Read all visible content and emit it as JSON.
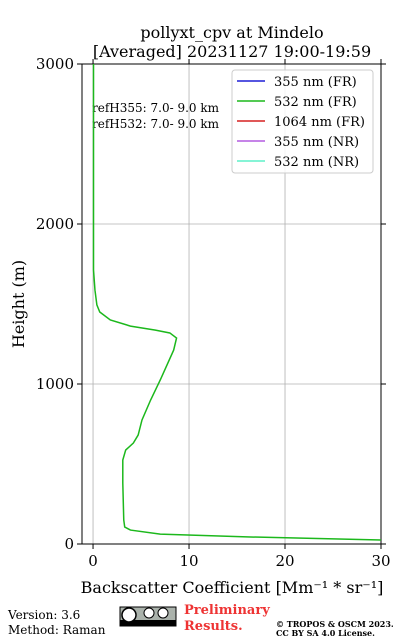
{
  "chart_data": {
    "type": "profile",
    "title": "pollyxt_cpv at Mindelo",
    "subtitle": "[Averaged] 20231127 19:00-19:59",
    "xlabel": "Backscatter Coefficient [Mm⁻¹ * sr⁻¹]",
    "ylabel": "Height (m)",
    "xlim": [
      -1.15,
      30
    ],
    "xticks": [
      0,
      10,
      20,
      30
    ],
    "ylim": [
      0,
      3000
    ],
    "yticks": [
      0,
      1000,
      2000,
      3000
    ],
    "grid": true,
    "legend": "upper right",
    "annotations": [
      "refH355:  7.0- 9.0 km",
      "refH532:  7.0- 9.0 km"
    ],
    "series": [
      {
        "name": "355 nm (FR)",
        "color": "#1f1fd6",
        "values": [],
        "heights": []
      },
      {
        "name": "532 nm (FR)",
        "color": "#1cb81c",
        "values": [
          0.05,
          0.05,
          0.2,
          0.4,
          0.7,
          1.8,
          3.9,
          6.5,
          8.0,
          8.7,
          8.4,
          7.0,
          6.0,
          5.1,
          4.7,
          4.2,
          3.4,
          3.1,
          3.1,
          3.2,
          3.3,
          3.9,
          7.0,
          16.4,
          30
        ],
        "heights": [
          3000,
          1712,
          1587,
          1494,
          1450,
          1400,
          1362,
          1337,
          1319,
          1287,
          1212,
          1025,
          900,
          775,
          681,
          631,
          587,
          525,
          381,
          150,
          106,
          87,
          62,
          44,
          25
        ]
      },
      {
        "name": "1064 nm (FR)",
        "color": "#d62020",
        "values": [],
        "heights": []
      },
      {
        "name": "355 nm (NR)",
        "color": "#b45ce0",
        "values": [],
        "heights": []
      },
      {
        "name": "532 nm (NR)",
        "color": "#5ef0c8",
        "values": [],
        "heights": []
      }
    ]
  },
  "footer": {
    "version": "Version: 3.6",
    "method": "Method: Raman",
    "notice": [
      "Preliminary",
      "Results."
    ],
    "copyright": [
      "© TROPOS & OSCM 2023.",
      "CC BY SA 4.0 License."
    ]
  }
}
